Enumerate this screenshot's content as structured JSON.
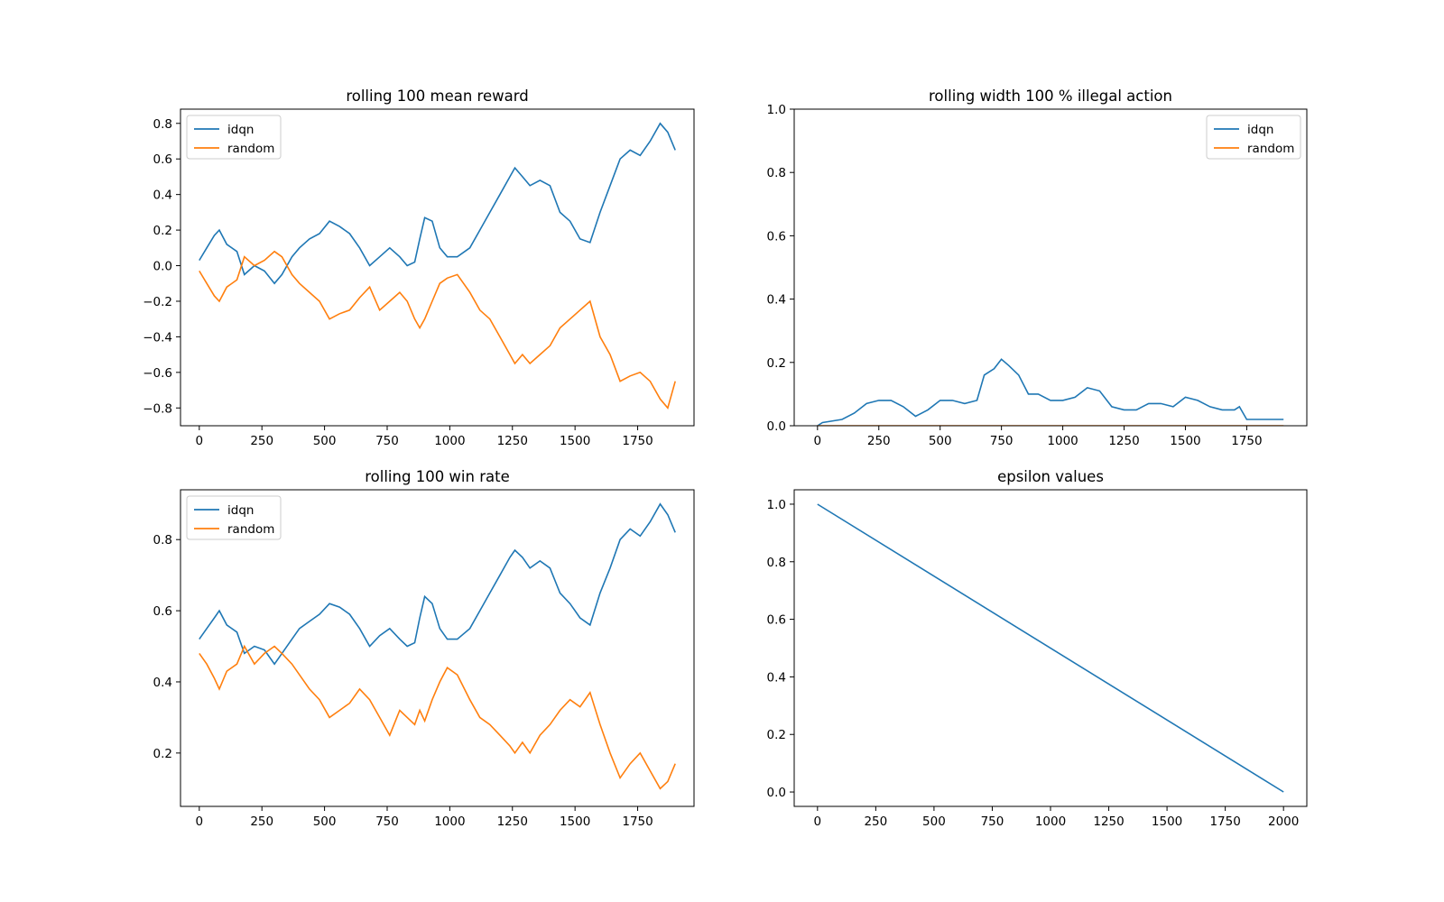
{
  "chart_data": [
    {
      "type": "line",
      "title": "rolling 100 mean reward",
      "xlabel": "",
      "ylabel": "",
      "xlim": [
        -75,
        1975
      ],
      "ylim": [
        -0.9,
        0.88
      ],
      "xticks": [
        0,
        250,
        500,
        750,
        1000,
        1250,
        1500,
        1750
      ],
      "yticks": [
        -0.8,
        -0.6,
        -0.4,
        -0.2,
        0.0,
        0.2,
        0.4,
        0.6,
        0.8
      ],
      "xtick_labels": [
        "0",
        "250",
        "500",
        "750",
        "1000",
        "1250",
        "1500",
        "1750"
      ],
      "ytick_labels": [
        "−0.8",
        "−0.6",
        "−0.4",
        "−0.2",
        "0.0",
        "0.2",
        "0.4",
        "0.6",
        "0.8"
      ],
      "legend": "upper left",
      "series": [
        {
          "name": "idqn",
          "color": "#1f77b4",
          "x": [
            0,
            30,
            60,
            80,
            110,
            150,
            180,
            220,
            260,
            300,
            330,
            370,
            400,
            440,
            480,
            520,
            560,
            600,
            640,
            680,
            720,
            760,
            800,
            830,
            860,
            880,
            900,
            930,
            960,
            990,
            1030,
            1080,
            1120,
            1160,
            1200,
            1240,
            1260,
            1290,
            1320,
            1360,
            1400,
            1440,
            1480,
            1520,
            1560,
            1600,
            1640,
            1680,
            1720,
            1760,
            1800,
            1840,
            1870,
            1900
          ],
          "values": [
            0.03,
            0.1,
            0.17,
            0.2,
            0.12,
            0.08,
            -0.05,
            0.0,
            -0.03,
            -0.1,
            -0.05,
            0.05,
            0.1,
            0.15,
            0.18,
            0.25,
            0.22,
            0.18,
            0.1,
            0.0,
            0.05,
            0.1,
            0.05,
            0.0,
            0.02,
            0.15,
            0.27,
            0.25,
            0.1,
            0.05,
            0.05,
            0.1,
            0.2,
            0.3,
            0.4,
            0.5,
            0.55,
            0.5,
            0.45,
            0.48,
            0.45,
            0.3,
            0.25,
            0.15,
            0.13,
            0.3,
            0.45,
            0.6,
            0.65,
            0.62,
            0.7,
            0.8,
            0.75,
            0.65
          ]
        },
        {
          "name": "random",
          "color": "#ff7f0e",
          "x": [
            0,
            30,
            60,
            80,
            110,
            150,
            180,
            220,
            260,
            300,
            330,
            370,
            400,
            440,
            480,
            520,
            560,
            600,
            640,
            680,
            720,
            760,
            800,
            830,
            860,
            880,
            900,
            930,
            960,
            990,
            1030,
            1080,
            1120,
            1160,
            1200,
            1240,
            1260,
            1290,
            1320,
            1360,
            1400,
            1440,
            1480,
            1520,
            1560,
            1600,
            1640,
            1680,
            1720,
            1760,
            1800,
            1840,
            1870,
            1900
          ],
          "values": [
            -0.03,
            -0.1,
            -0.17,
            -0.2,
            -0.12,
            -0.08,
            0.05,
            0.0,
            0.03,
            0.08,
            0.05,
            -0.05,
            -0.1,
            -0.15,
            -0.2,
            -0.3,
            -0.27,
            -0.25,
            -0.18,
            -0.12,
            -0.25,
            -0.2,
            -0.15,
            -0.2,
            -0.3,
            -0.35,
            -0.3,
            -0.2,
            -0.1,
            -0.07,
            -0.05,
            -0.15,
            -0.25,
            -0.3,
            -0.4,
            -0.5,
            -0.55,
            -0.5,
            -0.55,
            -0.5,
            -0.45,
            -0.35,
            -0.3,
            -0.25,
            -0.2,
            -0.4,
            -0.5,
            -0.65,
            -0.62,
            -0.6,
            -0.65,
            -0.75,
            -0.8,
            -0.65
          ]
        }
      ]
    },
    {
      "type": "line",
      "title": "rolling width 100 % illegal action",
      "xlabel": "",
      "ylabel": "",
      "xlim": [
        -95,
        1995
      ],
      "ylim": [
        0.0,
        1.0
      ],
      "xticks": [
        0,
        250,
        500,
        750,
        1000,
        1250,
        1500,
        1750
      ],
      "yticks": [
        0.0,
        0.2,
        0.4,
        0.6,
        0.8,
        1.0
      ],
      "xtick_labels": [
        "0",
        "250",
        "500",
        "750",
        "1000",
        "1250",
        "1500",
        "1750"
      ],
      "ytick_labels": [
        "0.0",
        "0.2",
        "0.4",
        "0.6",
        "0.8",
        "1.0"
      ],
      "legend": "upper right",
      "series": [
        {
          "name": "idqn",
          "color": "#1f77b4",
          "x": [
            0,
            20,
            100,
            150,
            200,
            250,
            300,
            350,
            400,
            450,
            500,
            550,
            600,
            650,
            680,
            720,
            750,
            780,
            820,
            860,
            900,
            950,
            1000,
            1050,
            1100,
            1150,
            1200,
            1250,
            1300,
            1350,
            1400,
            1450,
            1500,
            1550,
            1600,
            1650,
            1700,
            1720,
            1750,
            1800,
            1850,
            1900
          ],
          "values": [
            0.0,
            0.01,
            0.02,
            0.04,
            0.07,
            0.08,
            0.08,
            0.06,
            0.03,
            0.05,
            0.08,
            0.08,
            0.07,
            0.08,
            0.16,
            0.18,
            0.21,
            0.19,
            0.16,
            0.1,
            0.1,
            0.08,
            0.08,
            0.09,
            0.12,
            0.11,
            0.06,
            0.05,
            0.05,
            0.07,
            0.07,
            0.06,
            0.09,
            0.08,
            0.06,
            0.05,
            0.05,
            0.06,
            0.02,
            0.02,
            0.02,
            0.02
          ]
        },
        {
          "name": "random",
          "color": "#ff7f0e",
          "x": [
            0,
            1900
          ],
          "values": [
            0.0,
            0.0
          ]
        }
      ]
    },
    {
      "type": "line",
      "title": "rolling 100 win rate",
      "xlabel": "",
      "ylabel": "",
      "xlim": [
        -75,
        1975
      ],
      "ylim": [
        0.05,
        0.94
      ],
      "xticks": [
        0,
        250,
        500,
        750,
        1000,
        1250,
        1500,
        1750
      ],
      "yticks": [
        0.2,
        0.4,
        0.6,
        0.8
      ],
      "xtick_labels": [
        "0",
        "250",
        "500",
        "750",
        "1000",
        "1250",
        "1500",
        "1750"
      ],
      "ytick_labels": [
        "0.2",
        "0.4",
        "0.6",
        "0.8"
      ],
      "legend": "upper left",
      "series": [
        {
          "name": "idqn",
          "color": "#1f77b4",
          "x": [
            0,
            30,
            60,
            80,
            110,
            150,
            180,
            220,
            260,
            300,
            330,
            370,
            400,
            440,
            480,
            520,
            560,
            600,
            640,
            680,
            720,
            760,
            800,
            830,
            860,
            880,
            900,
            930,
            960,
            990,
            1030,
            1080,
            1120,
            1160,
            1200,
            1240,
            1260,
            1290,
            1320,
            1360,
            1400,
            1440,
            1480,
            1520,
            1560,
            1600,
            1640,
            1680,
            1720,
            1760,
            1800,
            1840,
            1870,
            1900
          ],
          "values": [
            0.52,
            0.55,
            0.58,
            0.6,
            0.56,
            0.54,
            0.48,
            0.5,
            0.49,
            0.45,
            0.48,
            0.52,
            0.55,
            0.57,
            0.59,
            0.62,
            0.61,
            0.59,
            0.55,
            0.5,
            0.53,
            0.55,
            0.52,
            0.5,
            0.51,
            0.58,
            0.64,
            0.62,
            0.55,
            0.52,
            0.52,
            0.55,
            0.6,
            0.65,
            0.7,
            0.75,
            0.77,
            0.75,
            0.72,
            0.74,
            0.72,
            0.65,
            0.62,
            0.58,
            0.56,
            0.65,
            0.72,
            0.8,
            0.83,
            0.81,
            0.85,
            0.9,
            0.87,
            0.82
          ]
        },
        {
          "name": "random",
          "color": "#ff7f0e",
          "x": [
            0,
            30,
            60,
            80,
            110,
            150,
            180,
            220,
            260,
            300,
            330,
            370,
            400,
            440,
            480,
            520,
            560,
            600,
            640,
            680,
            720,
            760,
            800,
            830,
            860,
            880,
            900,
            930,
            960,
            990,
            1030,
            1080,
            1120,
            1160,
            1200,
            1240,
            1260,
            1290,
            1320,
            1360,
            1400,
            1440,
            1480,
            1520,
            1560,
            1600,
            1640,
            1680,
            1720,
            1760,
            1800,
            1840,
            1870,
            1900
          ],
          "values": [
            0.48,
            0.45,
            0.41,
            0.38,
            0.43,
            0.45,
            0.5,
            0.45,
            0.48,
            0.5,
            0.48,
            0.45,
            0.42,
            0.38,
            0.35,
            0.3,
            0.32,
            0.34,
            0.38,
            0.35,
            0.3,
            0.25,
            0.32,
            0.3,
            0.28,
            0.32,
            0.29,
            0.35,
            0.4,
            0.44,
            0.42,
            0.35,
            0.3,
            0.28,
            0.25,
            0.22,
            0.2,
            0.23,
            0.2,
            0.25,
            0.28,
            0.32,
            0.35,
            0.33,
            0.37,
            0.28,
            0.2,
            0.13,
            0.17,
            0.2,
            0.15,
            0.1,
            0.12,
            0.17
          ]
        }
      ]
    },
    {
      "type": "line",
      "title": "epsilon values",
      "xlabel": "",
      "ylabel": "",
      "xlim": [
        -100,
        2100
      ],
      "ylim": [
        -0.05,
        1.05
      ],
      "xticks": [
        0,
        250,
        500,
        750,
        1000,
        1250,
        1500,
        1750,
        2000
      ],
      "yticks": [
        0.0,
        0.2,
        0.4,
        0.6,
        0.8,
        1.0
      ],
      "xtick_labels": [
        "0",
        "250",
        "500",
        "750",
        "1000",
        "1250",
        "1500",
        "1750",
        "2000"
      ],
      "ytick_labels": [
        "0.0",
        "0.2",
        "0.4",
        "0.6",
        "0.8",
        "1.0"
      ],
      "legend": "none",
      "series": [
        {
          "color": "#1f77b4",
          "x": [
            0,
            2000
          ],
          "values": [
            1.0,
            0.0
          ]
        }
      ]
    }
  ]
}
